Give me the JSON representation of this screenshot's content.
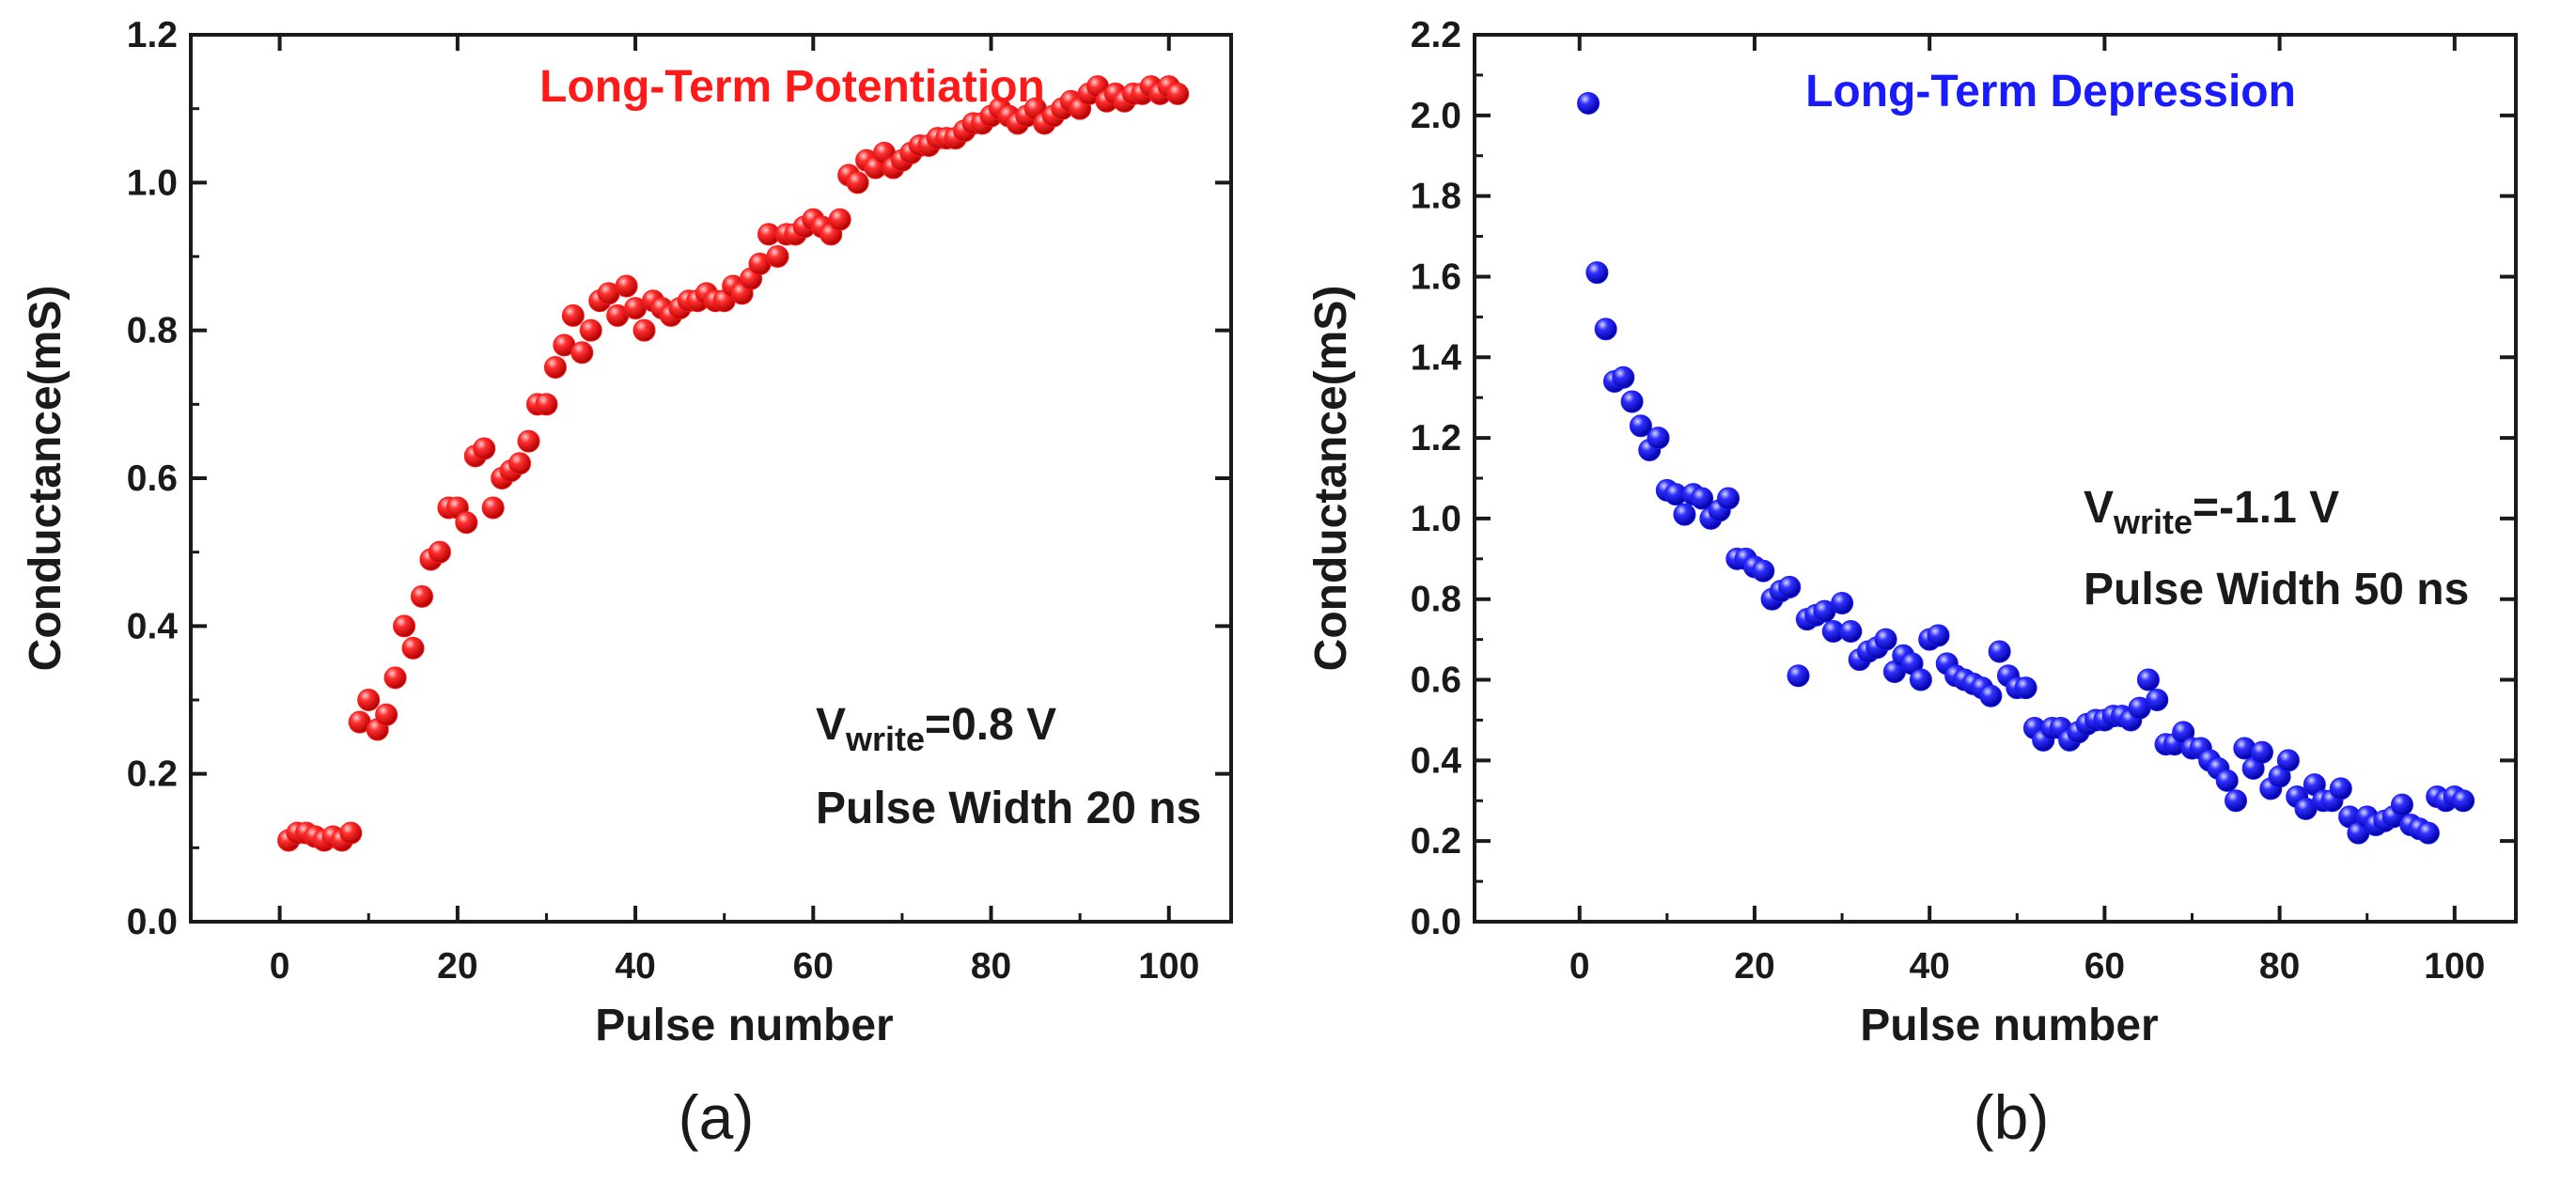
{
  "chart_data": [
    {
      "type": "scatter",
      "panel_label": "(a)",
      "title": "Long-Term Potentiation",
      "title_color": "#ff1a1a",
      "marker_color": "#ff1a1a",
      "xlabel": "Pulse number",
      "ylabel": "Conductance(mS)",
      "xlim": [
        -10,
        107
      ],
      "ylim": [
        0,
        1.2
      ],
      "xticks": [
        "0",
        "20",
        "40",
        "60",
        "80",
        "100"
      ],
      "yticks": [
        "0.0",
        "0.2",
        "0.4",
        "0.6",
        "0.8",
        "1.0",
        "1.2"
      ],
      "annotation": {
        "line1_prefix": "V",
        "line1_sub": "write",
        "line1_suffix": "=0.8 V",
        "line2": "Pulse Width 20 ns"
      },
      "series": [
        {
          "name": "LTP",
          "x": [
            1,
            2,
            3,
            4,
            5,
            6,
            7,
            8,
            9,
            10,
            11,
            12,
            13,
            14,
            15,
            16,
            17,
            18,
            19,
            20,
            21,
            22,
            23,
            24,
            25,
            26,
            27,
            28,
            29,
            30,
            31,
            32,
            33,
            34,
            35,
            36,
            37,
            38,
            39,
            40,
            41,
            42,
            43,
            44,
            45,
            46,
            47,
            48,
            49,
            50,
            51,
            52,
            53,
            54,
            55,
            56,
            57,
            58,
            59,
            60,
            61,
            62,
            63,
            64,
            65,
            66,
            67,
            68,
            69,
            70,
            71,
            72,
            73,
            74,
            75,
            76,
            77,
            78,
            79,
            80,
            81,
            82,
            83,
            84,
            85,
            86,
            87,
            88,
            89,
            90,
            91,
            92,
            93,
            94,
            95,
            96,
            97,
            98,
            99,
            100,
            101
          ],
          "y": [
            0.11,
            0.12,
            0.12,
            0.115,
            0.11,
            0.115,
            0.11,
            0.12,
            0.27,
            0.3,
            0.26,
            0.28,
            0.33,
            0.4,
            0.37,
            0.44,
            0.49,
            0.5,
            0.56,
            0.56,
            0.54,
            0.63,
            0.64,
            0.56,
            0.6,
            0.61,
            0.62,
            0.65,
            0.7,
            0.7,
            0.75,
            0.78,
            0.82,
            0.77,
            0.8,
            0.84,
            0.85,
            0.82,
            0.86,
            0.83,
            0.8,
            0.84,
            0.83,
            0.82,
            0.83,
            0.84,
            0.84,
            0.85,
            0.84,
            0.84,
            0.86,
            0.85,
            0.87,
            0.89,
            0.93,
            0.9,
            0.93,
            0.93,
            0.94,
            0.95,
            0.94,
            0.93,
            0.95,
            1.01,
            1.0,
            1.03,
            1.02,
            1.04,
            1.02,
            1.03,
            1.04,
            1.05,
            1.05,
            1.06,
            1.06,
            1.06,
            1.07,
            1.08,
            1.08,
            1.09,
            1.1,
            1.09,
            1.08,
            1.09,
            1.1,
            1.08,
            1.09,
            1.1,
            1.11,
            1.1,
            1.12,
            1.13,
            1.11,
            1.12,
            1.11,
            1.12,
            1.12,
            1.13,
            1.12,
            1.13,
            1.12
          ]
        }
      ]
    },
    {
      "type": "scatter",
      "panel_label": "(b)",
      "title": "Long-Term Depression",
      "title_color": "#1a1aff",
      "marker_color": "#1a1aff",
      "xlabel": "Pulse number",
      "ylabel": "Conductance(mS)",
      "xlim": [
        -12,
        107
      ],
      "ylim": [
        0,
        2.2
      ],
      "xticks": [
        "0",
        "20",
        "40",
        "60",
        "80",
        "100"
      ],
      "yticks": [
        "0.0",
        "0.2",
        "0.4",
        "0.6",
        "0.8",
        "1.0",
        "1.2",
        "1.4",
        "1.6",
        "1.8",
        "2.0",
        "2.2"
      ],
      "annotation": {
        "line1_prefix": "V",
        "line1_sub": "write",
        "line1_suffix": "=-1.1 V",
        "line2": "Pulse Width 50 ns"
      },
      "series": [
        {
          "name": "LTD",
          "x": [
            1,
            2,
            3,
            4,
            5,
            6,
            7,
            8,
            9,
            10,
            11,
            12,
            13,
            14,
            15,
            16,
            17,
            18,
            19,
            20,
            21,
            22,
            23,
            24,
            25,
            26,
            27,
            28,
            29,
            30,
            31,
            32,
            33,
            34,
            35,
            36,
            37,
            38,
            39,
            40,
            41,
            42,
            43,
            44,
            45,
            46,
            47,
            48,
            49,
            50,
            51,
            52,
            53,
            54,
            55,
            56,
            57,
            58,
            59,
            60,
            61,
            62,
            63,
            64,
            65,
            66,
            67,
            68,
            69,
            70,
            71,
            72,
            73,
            74,
            75,
            76,
            77,
            78,
            79,
            80,
            81,
            82,
            83,
            84,
            85,
            86,
            87,
            88,
            89,
            90,
            91,
            92,
            93,
            94,
            95,
            96,
            97,
            98,
            99,
            100,
            101
          ],
          "y": [
            2.03,
            1.61,
            1.47,
            1.34,
            1.35,
            1.29,
            1.23,
            1.17,
            1.2,
            1.07,
            1.06,
            1.01,
            1.06,
            1.05,
            1.0,
            1.02,
            1.05,
            0.9,
            0.9,
            0.88,
            0.87,
            0.8,
            0.82,
            0.83,
            0.61,
            0.75,
            0.76,
            0.77,
            0.72,
            0.79,
            0.72,
            0.65,
            0.67,
            0.68,
            0.7,
            0.62,
            0.66,
            0.64,
            0.6,
            0.7,
            0.71,
            0.64,
            0.61,
            0.6,
            0.59,
            0.58,
            0.56,
            0.67,
            0.61,
            0.58,
            0.58,
            0.48,
            0.45,
            0.48,
            0.48,
            0.45,
            0.47,
            0.49,
            0.5,
            0.5,
            0.51,
            0.51,
            0.5,
            0.53,
            0.6,
            0.55,
            0.44,
            0.44,
            0.47,
            0.43,
            0.43,
            0.4,
            0.38,
            0.35,
            0.3,
            0.43,
            0.38,
            0.42,
            0.33,
            0.36,
            0.4,
            0.31,
            0.28,
            0.34,
            0.3,
            0.3,
            0.33,
            0.26,
            0.22,
            0.26,
            0.24,
            0.25,
            0.26,
            0.29,
            0.24,
            0.23,
            0.22,
            0.31,
            0.3,
            0.31,
            0.3
          ]
        }
      ]
    }
  ]
}
